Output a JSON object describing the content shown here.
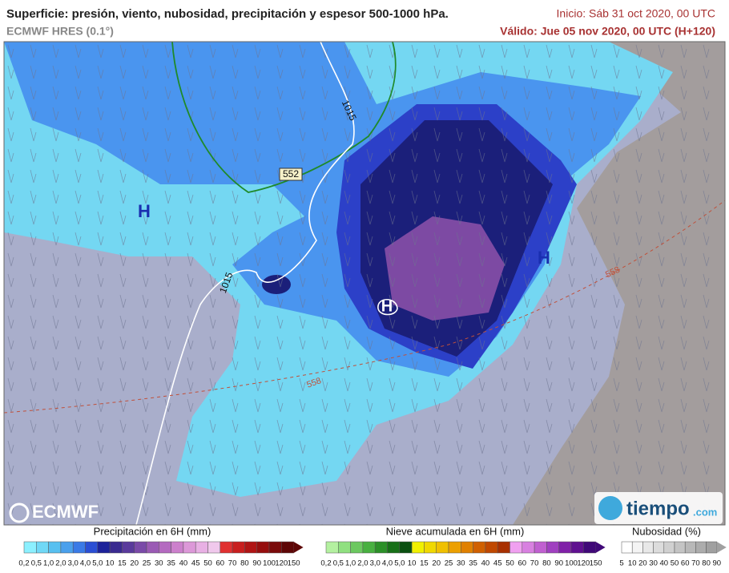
{
  "header": {
    "title": "Superficie: presión, viento, nubosidad, precipitación y espesor 500-1000 hPa.",
    "model": "ECMWF HRES (0.1°)",
    "init": "Inicio: Sáb 31 oct 2020, 00 UTC",
    "valid": "Válido: Jue 05 nov 2020, 00 UTC (H+120)"
  },
  "map": {
    "highs": [
      "H",
      "H",
      "H"
    ],
    "isobars": [
      "1015",
      "1015"
    ],
    "thickness": [
      "552",
      "558",
      "558"
    ]
  },
  "logos": {
    "ecmwf": "ECMWF",
    "tiempo": "tiempo",
    ".com": ".com"
  },
  "legend": {
    "precipitation": {
      "title": "Precipitación en 6H (mm)",
      "labels": [
        "0,2",
        "0,5",
        "1,0",
        "2,0",
        "3,0",
        "4,0",
        "5,0",
        "10",
        "15",
        "20",
        "25",
        "30",
        "35",
        "40",
        "45",
        "50",
        "60",
        "70",
        "80",
        "90",
        "100",
        "120",
        "150"
      ]
    },
    "snow": {
      "title": "Nieve acumulada en 6H (mm)",
      "labels": [
        "0,2",
        "0,5",
        "1,0",
        "2,0",
        "3,0",
        "4,0",
        "5,0",
        "10",
        "15",
        "20",
        "25",
        "30",
        "35",
        "40",
        "45",
        "50",
        "60",
        "70",
        "80",
        "90",
        "100",
        "120",
        "150"
      ]
    },
    "cloud": {
      "title": "Nubosidad (%)",
      "labels": [
        "5",
        "10",
        "20",
        "30",
        "40",
        "50",
        "60",
        "70",
        "80",
        "90"
      ]
    }
  }
}
